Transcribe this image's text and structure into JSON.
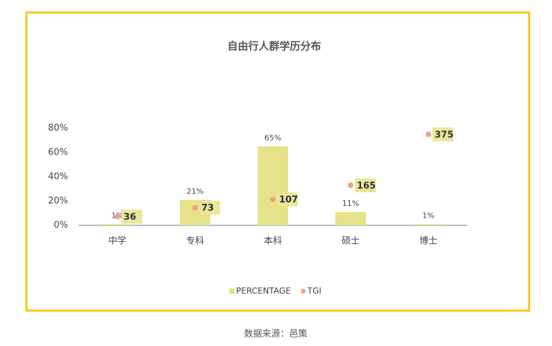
{
  "chart_data": {
    "type": "bar",
    "title": "自由行人群学历分布",
    "categories": [
      "中学",
      "专科",
      "本科",
      "硕士",
      "博士"
    ],
    "series": [
      {
        "name": "PERCENTAGE",
        "type": "bar",
        "color": "#e6e28a",
        "values": [
          1,
          21,
          65,
          11,
          1
        ],
        "value_labels": [
          "1%",
          "21%",
          "65%",
          "11%",
          "1%"
        ]
      },
      {
        "name": "TGI",
        "type": "scatter",
        "axis": "y2",
        "color": "#f0a285",
        "label_color": "#ebe69a",
        "values": [
          36,
          73,
          107,
          165,
          375
        ]
      }
    ],
    "ylim": [
      0,
      80
    ],
    "yticks": [
      {
        "value": 0,
        "label": "0%"
      },
      {
        "value": 20,
        "label": "20%"
      },
      {
        "value": 40,
        "label": "40%"
      },
      {
        "value": 60,
        "label": "60%"
      },
      {
        "value": 80,
        "label": "80%"
      }
    ],
    "y2lim": [
      0,
      400
    ],
    "legend": "bottom",
    "source": "数据来源：邑策"
  }
}
